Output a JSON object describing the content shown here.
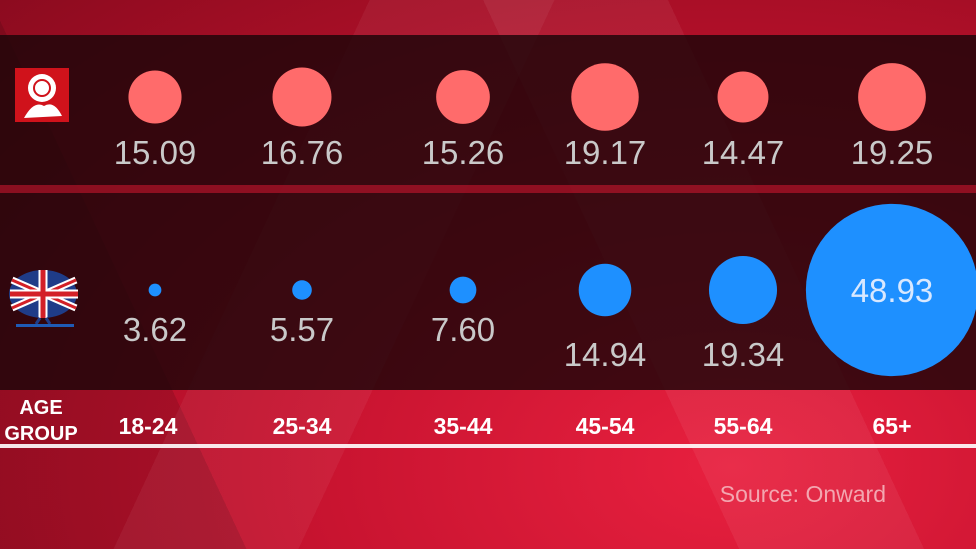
{
  "chart_data": {
    "type": "scatter",
    "title": "",
    "xlabel": "AGE GROUP",
    "categories": [
      "18-24",
      "25-34",
      "35-44",
      "45-54",
      "55-64",
      "65+"
    ],
    "series": [
      {
        "party_icon": "labour-rose-logo",
        "color": "#ff6b6b",
        "values": [
          15.09,
          16.76,
          15.26,
          19.17,
          14.47,
          19.25
        ]
      },
      {
        "party_icon": "conservative-tree-logo",
        "color": "#1e90ff",
        "values": [
          3.62,
          5.57,
          7.6,
          14.94,
          19.34,
          48.93
        ]
      }
    ],
    "value_labels": [
      [
        "15.09",
        "16.76",
        "15.26",
        "19.17",
        "14.47",
        "19.25"
      ],
      [
        "3.62",
        "5.57",
        "7.60",
        "14.94",
        "19.34",
        "48.93"
      ]
    ],
    "source": "Source: Onward"
  },
  "axis": {
    "label_line1": "AGE",
    "label_line2": "GROUP"
  }
}
